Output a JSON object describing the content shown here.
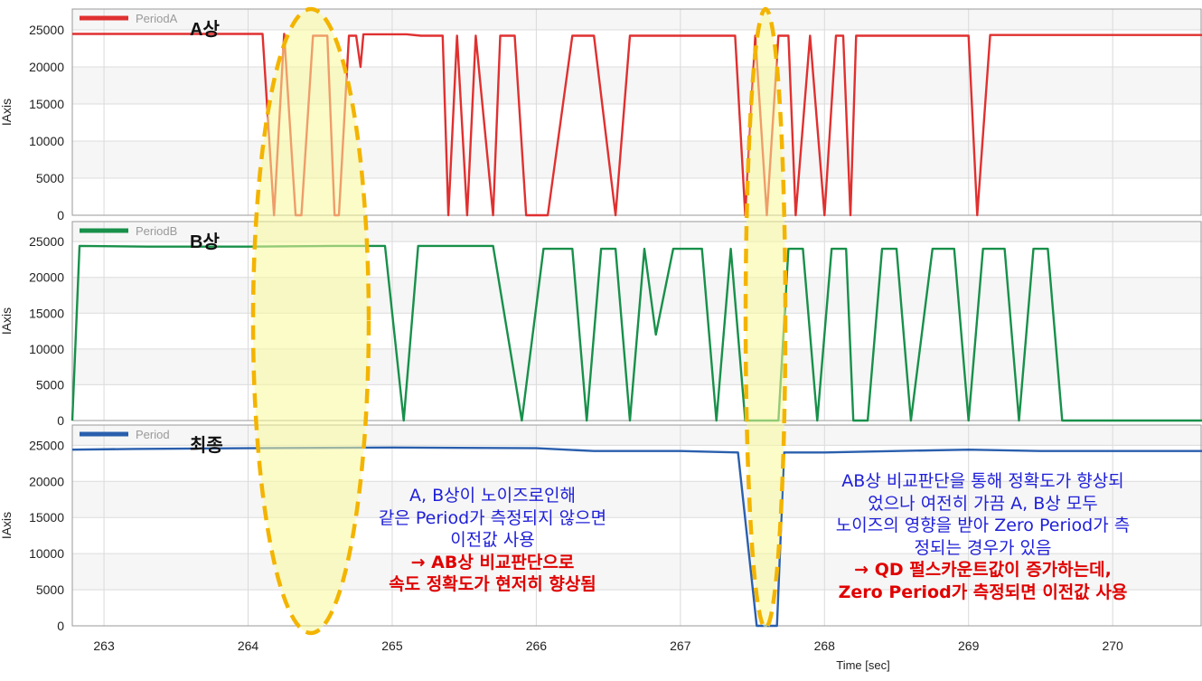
{
  "chart_data": {
    "type": "line",
    "xlabel": "Time [sec]",
    "xlim": [
      262.78,
      270.62
    ],
    "x_ticks": [
      263,
      264,
      265,
      266,
      267,
      268,
      269,
      270
    ],
    "grid": true,
    "panels": [
      {
        "id": "a",
        "series_name": "PeriodA",
        "phase_label": "A상",
        "ylabel": "IAxis",
        "ylim": [
          0,
          27800
        ],
        "y_ticks": [
          0,
          5000,
          10000,
          15000,
          20000,
          25000
        ],
        "color": "#e03030",
        "points": [
          [
            262.78,
            24450
          ],
          [
            263.5,
            24450
          ],
          [
            264.0,
            24450
          ],
          [
            264.1,
            24450
          ],
          [
            264.18,
            0
          ],
          [
            264.25,
            24450
          ],
          [
            264.33,
            0
          ],
          [
            264.37,
            0
          ],
          [
            264.45,
            24200
          ],
          [
            264.55,
            24200
          ],
          [
            264.6,
            0
          ],
          [
            264.63,
            0
          ],
          [
            264.7,
            24200
          ],
          [
            264.75,
            24200
          ],
          [
            264.78,
            20000
          ],
          [
            264.8,
            24400
          ],
          [
            265.1,
            24400
          ],
          [
            265.2,
            24200
          ],
          [
            265.35,
            24200
          ],
          [
            265.39,
            0
          ],
          [
            265.45,
            24200
          ],
          [
            265.52,
            0
          ],
          [
            265.58,
            24200
          ],
          [
            265.7,
            0
          ],
          [
            265.75,
            24200
          ],
          [
            265.85,
            24200
          ],
          [
            265.93,
            0
          ],
          [
            266.08,
            0
          ],
          [
            266.25,
            24200
          ],
          [
            266.4,
            24200
          ],
          [
            266.55,
            0
          ],
          [
            266.65,
            24200
          ],
          [
            266.9,
            24200
          ],
          [
            267.2,
            24200
          ],
          [
            267.38,
            24200
          ],
          [
            267.45,
            0
          ],
          [
            267.52,
            24200
          ],
          [
            267.6,
            0
          ],
          [
            267.68,
            24200
          ],
          [
            267.75,
            24200
          ],
          [
            267.8,
            0
          ],
          [
            267.9,
            24200
          ],
          [
            268.0,
            0
          ],
          [
            268.08,
            24200
          ],
          [
            268.13,
            24200
          ],
          [
            268.18,
            0
          ],
          [
            268.22,
            24200
          ],
          [
            268.4,
            24200
          ],
          [
            268.6,
            24200
          ],
          [
            268.75,
            24200
          ],
          [
            269.0,
            24200
          ],
          [
            269.06,
            0
          ],
          [
            269.15,
            24300
          ],
          [
            270.0,
            24300
          ],
          [
            270.62,
            24300
          ]
        ]
      },
      {
        "id": "b",
        "series_name": "PeriodB",
        "phase_label": "B상",
        "ylabel": "IAxis",
        "ylim": [
          0,
          27800
        ],
        "y_ticks": [
          0,
          5000,
          10000,
          15000,
          20000,
          25000
        ],
        "color": "#18904a",
        "points": [
          [
            262.78,
            0
          ],
          [
            262.83,
            24400
          ],
          [
            263.3,
            24300
          ],
          [
            264.0,
            24300
          ],
          [
            264.6,
            24400
          ],
          [
            264.9,
            24400
          ],
          [
            264.95,
            24400
          ],
          [
            265.08,
            0
          ],
          [
            265.18,
            24400
          ],
          [
            265.5,
            24400
          ],
          [
            265.7,
            24400
          ],
          [
            265.9,
            0
          ],
          [
            266.05,
            24000
          ],
          [
            266.25,
            24000
          ],
          [
            266.35,
            0
          ],
          [
            266.45,
            24000
          ],
          [
            266.55,
            24000
          ],
          [
            266.65,
            0
          ],
          [
            266.75,
            24000
          ],
          [
            266.83,
            12000
          ],
          [
            266.95,
            24000
          ],
          [
            267.15,
            24000
          ],
          [
            267.25,
            0
          ],
          [
            267.35,
            24000
          ],
          [
            267.45,
            0
          ],
          [
            267.58,
            0
          ],
          [
            267.68,
            0
          ],
          [
            267.75,
            24000
          ],
          [
            267.85,
            24000
          ],
          [
            267.95,
            0
          ],
          [
            268.05,
            24000
          ],
          [
            268.15,
            24000
          ],
          [
            268.2,
            0
          ],
          [
            268.3,
            0
          ],
          [
            268.4,
            24000
          ],
          [
            268.5,
            24000
          ],
          [
            268.6,
            0
          ],
          [
            268.75,
            24000
          ],
          [
            268.9,
            24000
          ],
          [
            269.0,
            0
          ],
          [
            269.1,
            24000
          ],
          [
            269.25,
            24000
          ],
          [
            269.35,
            0
          ],
          [
            269.45,
            24000
          ],
          [
            269.55,
            24000
          ],
          [
            269.65,
            0
          ],
          [
            270.0,
            0
          ],
          [
            270.62,
            0
          ]
        ]
      },
      {
        "id": "c",
        "series_name": "Period",
        "phase_label": "최종",
        "ylabel": "IAxis",
        "ylim": [
          0,
          27800
        ],
        "y_ticks": [
          0,
          5000,
          10000,
          15000,
          20000,
          25000
        ],
        "color": "#2a5fad",
        "points": [
          [
            262.78,
            24400
          ],
          [
            263.2,
            24500
          ],
          [
            264.0,
            24600
          ],
          [
            265.0,
            24700
          ],
          [
            266.0,
            24600
          ],
          [
            266.4,
            24200
          ],
          [
            267.0,
            24200
          ],
          [
            267.4,
            24000
          ],
          [
            267.53,
            0
          ],
          [
            267.67,
            0
          ],
          [
            267.72,
            24000
          ],
          [
            268.0,
            24000
          ],
          [
            268.5,
            24200
          ],
          [
            269.0,
            24400
          ],
          [
            269.5,
            24200
          ],
          [
            270.62,
            24200
          ]
        ]
      }
    ]
  },
  "annotations": {
    "note1": {
      "lines": [
        "A, B상이 노이즈로인해",
        "같은 Period가 측정되지 않으면",
        "이전값 사용"
      ],
      "highlight": [
        "→ AB상 비교판단으로",
        "속도 정확도가 현저히 향상됨"
      ]
    },
    "note2": {
      "lines": [
        "AB상 비교판단을 통해 정확도가 향상되",
        "었으나 여전히 가끔 A, B상 모두",
        "노이즈의 영향을 받아 Zero Period가 측",
        "정되는 경우가 있음"
      ],
      "highlight": [
        "→ QD 펄스카운트값이 증가하는데,",
        "Zero Period가 측정되면 이전값 사용"
      ]
    }
  }
}
